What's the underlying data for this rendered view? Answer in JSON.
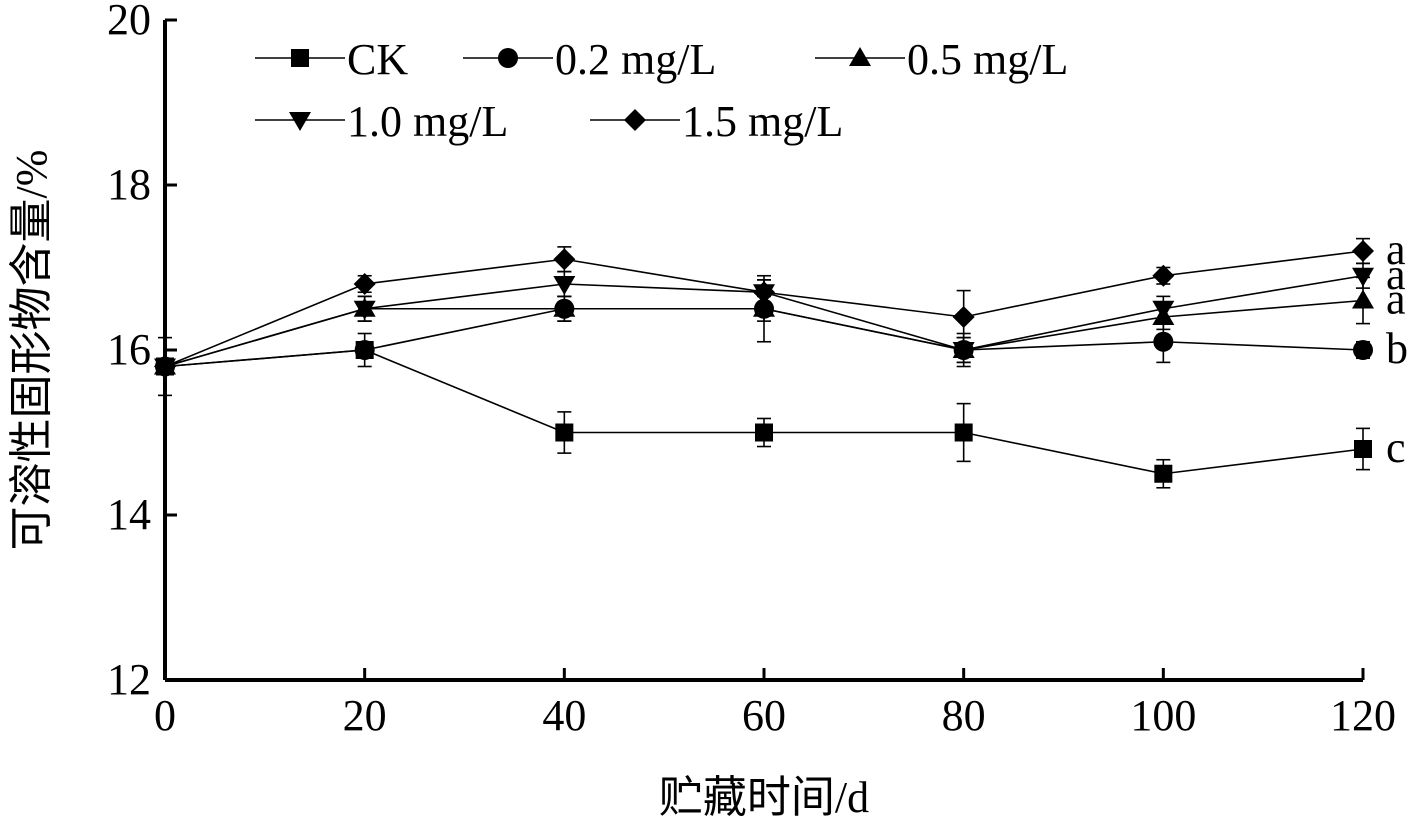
{
  "chart_data": {
    "type": "line",
    "xlabel": "贮藏时间/d",
    "ylabel": "可溶性固形物含量/%",
    "x": [
      0,
      20,
      40,
      60,
      80,
      100,
      120
    ],
    "x_ticks": [
      "0",
      "20",
      "40",
      "60",
      "80",
      "100",
      "120"
    ],
    "y_ticks": [
      "12",
      "14",
      "16",
      "18",
      "20"
    ],
    "xlim": [
      0,
      120
    ],
    "ylim": [
      12,
      20
    ],
    "grid": false,
    "legend_position": "top-left",
    "series": [
      {
        "name": "CK",
        "marker": "square",
        "values": [
          15.8,
          16.0,
          15.0,
          15.0,
          15.0,
          14.5,
          14.8
        ],
        "errors": [
          0.35,
          0.2,
          0.25,
          0.17,
          0.35,
          0.17,
          0.25
        ],
        "significance": "c"
      },
      {
        "name": "0.2 mg/L",
        "marker": "circle",
        "values": [
          15.8,
          16.0,
          16.5,
          16.5,
          16.0,
          16.1,
          16.0
        ],
        "errors": [
          0.0,
          0.0,
          0.15,
          0.4,
          0.2,
          0.25,
          0.1
        ],
        "significance": "b"
      },
      {
        "name": "0.5 mg/L",
        "marker": "triangle-up",
        "values": [
          15.8,
          16.5,
          16.5,
          16.5,
          16.0,
          16.4,
          16.6
        ],
        "errors": [
          0.0,
          0.15,
          0.15,
          0.15,
          0.15,
          0.15,
          0.28
        ],
        "significance": "a"
      },
      {
        "name": "1.0 mg/L",
        "marker": "triangle-down",
        "values": [
          15.8,
          16.5,
          16.8,
          16.7,
          16.0,
          16.5,
          16.9
        ],
        "errors": [
          0.0,
          0.15,
          0.15,
          0.15,
          0.15,
          0.15,
          0.15
        ],
        "significance": "a"
      },
      {
        "name": "1.5 mg/L",
        "marker": "diamond",
        "values": [
          15.8,
          16.8,
          17.1,
          16.7,
          16.4,
          16.9,
          17.2
        ],
        "errors": [
          0.0,
          0.1,
          0.15,
          0.15,
          0.32,
          0.1,
          0.15
        ],
        "significance": "a"
      }
    ]
  }
}
